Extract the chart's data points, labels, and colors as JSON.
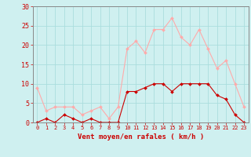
{
  "hours": [
    0,
    1,
    2,
    3,
    4,
    5,
    6,
    7,
    8,
    9,
    10,
    11,
    12,
    13,
    14,
    15,
    16,
    17,
    18,
    19,
    20,
    21,
    22,
    23
  ],
  "wind_mean": [
    0,
    1,
    0,
    2,
    1,
    0,
    1,
    0,
    0,
    0,
    8,
    8,
    9,
    10,
    10,
    8,
    10,
    10,
    10,
    10,
    7,
    6,
    2,
    0
  ],
  "wind_gust": [
    9,
    3,
    4,
    4,
    4,
    2,
    3,
    4,
    1,
    4,
    19,
    21,
    18,
    24,
    24,
    27,
    22,
    20,
    24,
    19,
    14,
    16,
    10,
    4
  ],
  "xlabel": "Vent moyen/en rafales ( km/h )",
  "ylim": [
    0,
    30
  ],
  "yticks": [
    0,
    5,
    10,
    15,
    20,
    25,
    30
  ],
  "bg_color": "#cff0f0",
  "grid_color": "#aadddd",
  "mean_color": "#cc0000",
  "gust_color": "#ffaaaa",
  "xlabel_color": "#cc0000",
  "tick_color": "#cc0000",
  "axis_color": "#888888",
  "line_width": 0.8,
  "marker_size": 2.0
}
